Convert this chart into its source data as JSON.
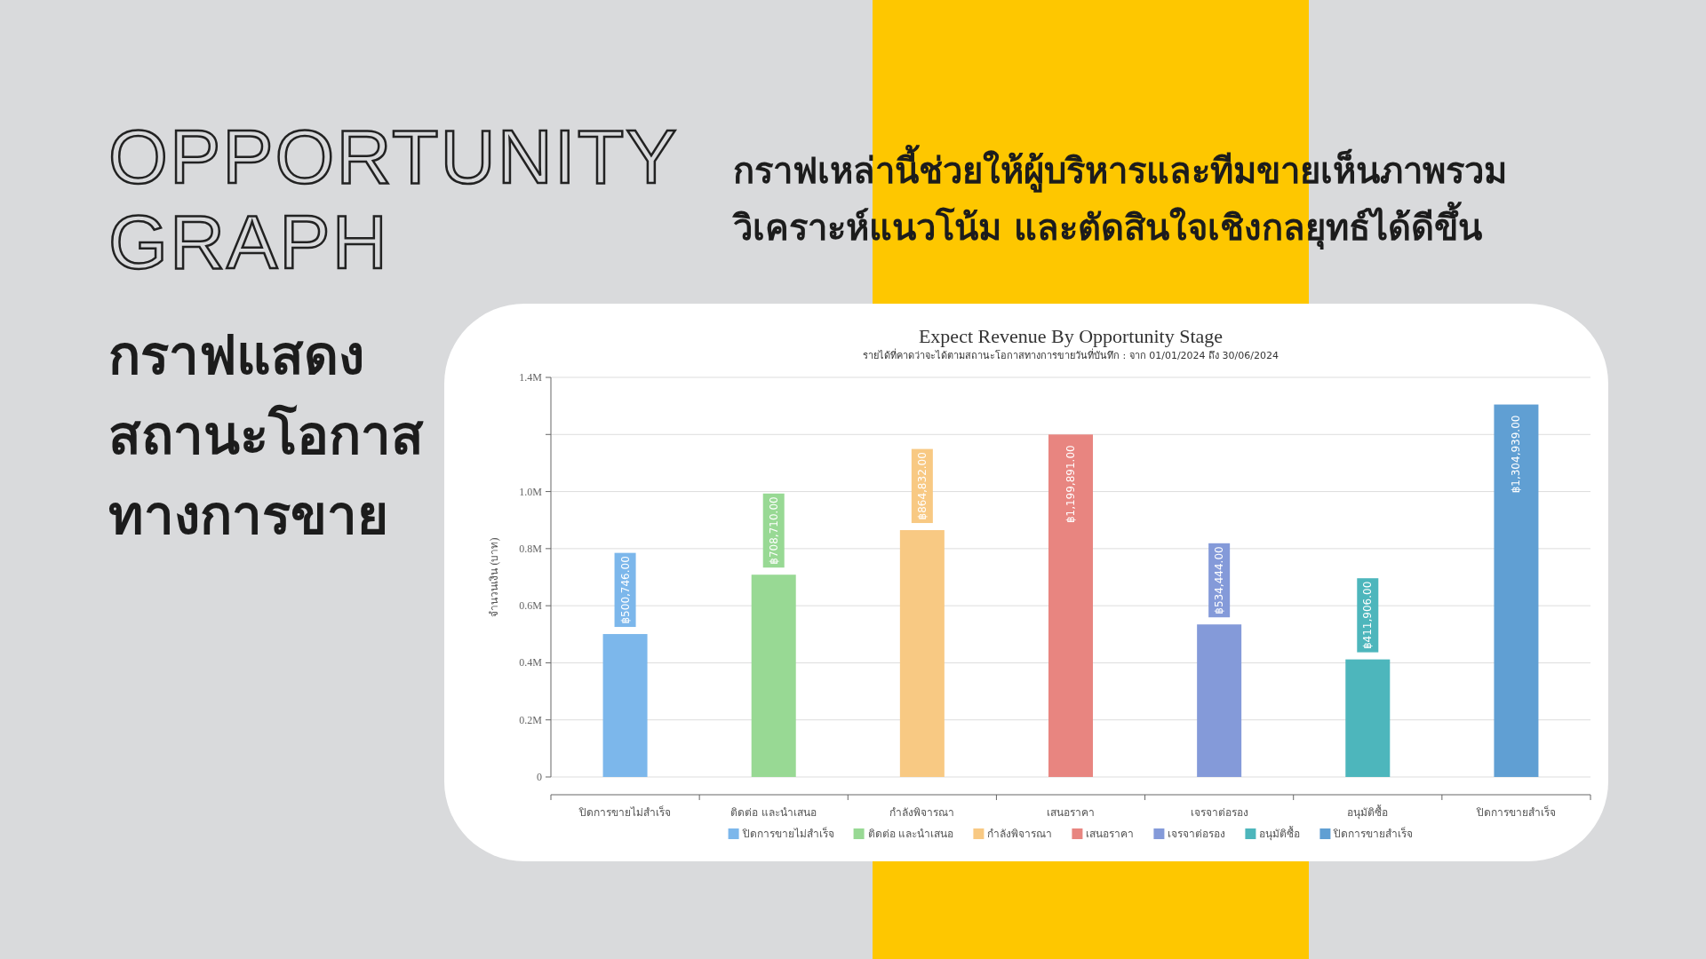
{
  "chart_data": {
    "type": "bar",
    "title": "Expect Revenue By Opportunity Stage",
    "subtitle": "รายได้ที่คาดว่าจะได้ตามสถานะโอกาสทางการขายวันที่บันทึก : จาก 01/01/2024 ถึง 30/06/2024",
    "ylabel": "จำนวนเงิน (บาท)",
    "categories": [
      "ปิดการขายไม่สำเร็จ",
      "ติดต่อ และนำเสนอ",
      "กำลังพิจารณา",
      "เสนอราคา",
      "เจรจาต่อรอง",
      "อนุมัติซื้อ",
      "ปิดการขายสำเร็จ"
    ],
    "series": [
      {
        "name": "ปิดการขายไม่สำเร็จ",
        "color": "#7cb7eb",
        "values": [
          500746,
          null,
          null,
          null,
          null,
          null,
          null
        ],
        "value_labels": [
          "฿500,746.00",
          null,
          null,
          null,
          null,
          null,
          null
        ]
      },
      {
        "name": "ติดต่อ และนำเสนอ",
        "color": "#98d994",
        "values": [
          null,
          708710,
          null,
          null,
          null,
          null,
          null
        ],
        "value_labels": [
          null,
          "฿708,710.00",
          null,
          null,
          null,
          null,
          null
        ]
      },
      {
        "name": "กำลังพิจารณา",
        "color": "#f8c983",
        "values": [
          null,
          null,
          864832,
          null,
          null,
          null,
          null
        ],
        "value_labels": [
          null,
          null,
          "฿864,832.00",
          null,
          null,
          null,
          null
        ]
      },
      {
        "name": "เสนอราคา",
        "color": "#e88580",
        "values": [
          null,
          null,
          null,
          1199891,
          null,
          null,
          null
        ],
        "value_labels": [
          null,
          null,
          null,
          "฿1,199,891.00",
          null,
          null,
          null
        ]
      },
      {
        "name": "เจรจาต่อรอง",
        "color": "#849ad9",
        "values": [
          null,
          null,
          null,
          null,
          534444,
          null,
          null
        ],
        "value_labels": [
          null,
          null,
          null,
          null,
          "฿534,444.00",
          null,
          null
        ]
      },
      {
        "name": "อนุมัติซื้อ",
        "color": "#4db6bc",
        "values": [
          null,
          null,
          null,
          null,
          null,
          411906,
          null
        ],
        "value_labels": [
          null,
          null,
          null,
          null,
          null,
          "฿411,906.00",
          null
        ]
      },
      {
        "name": "ปิดการขายสำเร็จ",
        "color": "#609fd3",
        "values": [
          null,
          null,
          null,
          null,
          null,
          null,
          1304939
        ],
        "value_labels": [
          null,
          null,
          null,
          null,
          null,
          null,
          "฿1,304,939.00"
        ]
      }
    ],
    "ylim": [
      0,
      1400000
    ],
    "yticks": [
      0,
      {
        "value": 200000,
        "label": "0.2M"
      },
      {
        "value": 400000,
        "label": "0.4M"
      },
      {
        "value": 600000,
        "label": "0.6M"
      },
      {
        "value": 800000,
        "label": "0.8M"
      },
      {
        "value": 1000000,
        "label": "1.0M"
      },
      {
        "value": 1200000,
        "label": null
      },
      {
        "value": 1400000,
        "label": "1.4M"
      }
    ],
    "grid": "y",
    "legend": "bottom",
    "annotations": [
      "OPPORTUNITY GRAPH",
      "กราฟแสดงสถานะโอกาสทางการขาย",
      "กราฟเหล่านี้ช่วยให้ผู้บริหารและทีมขายเห็นภาพรวม วิเคราะห์แนวโน้ม และตัดสินใจเชิงกลยุทธ์ได้ดีขึ้น"
    ]
  }
}
